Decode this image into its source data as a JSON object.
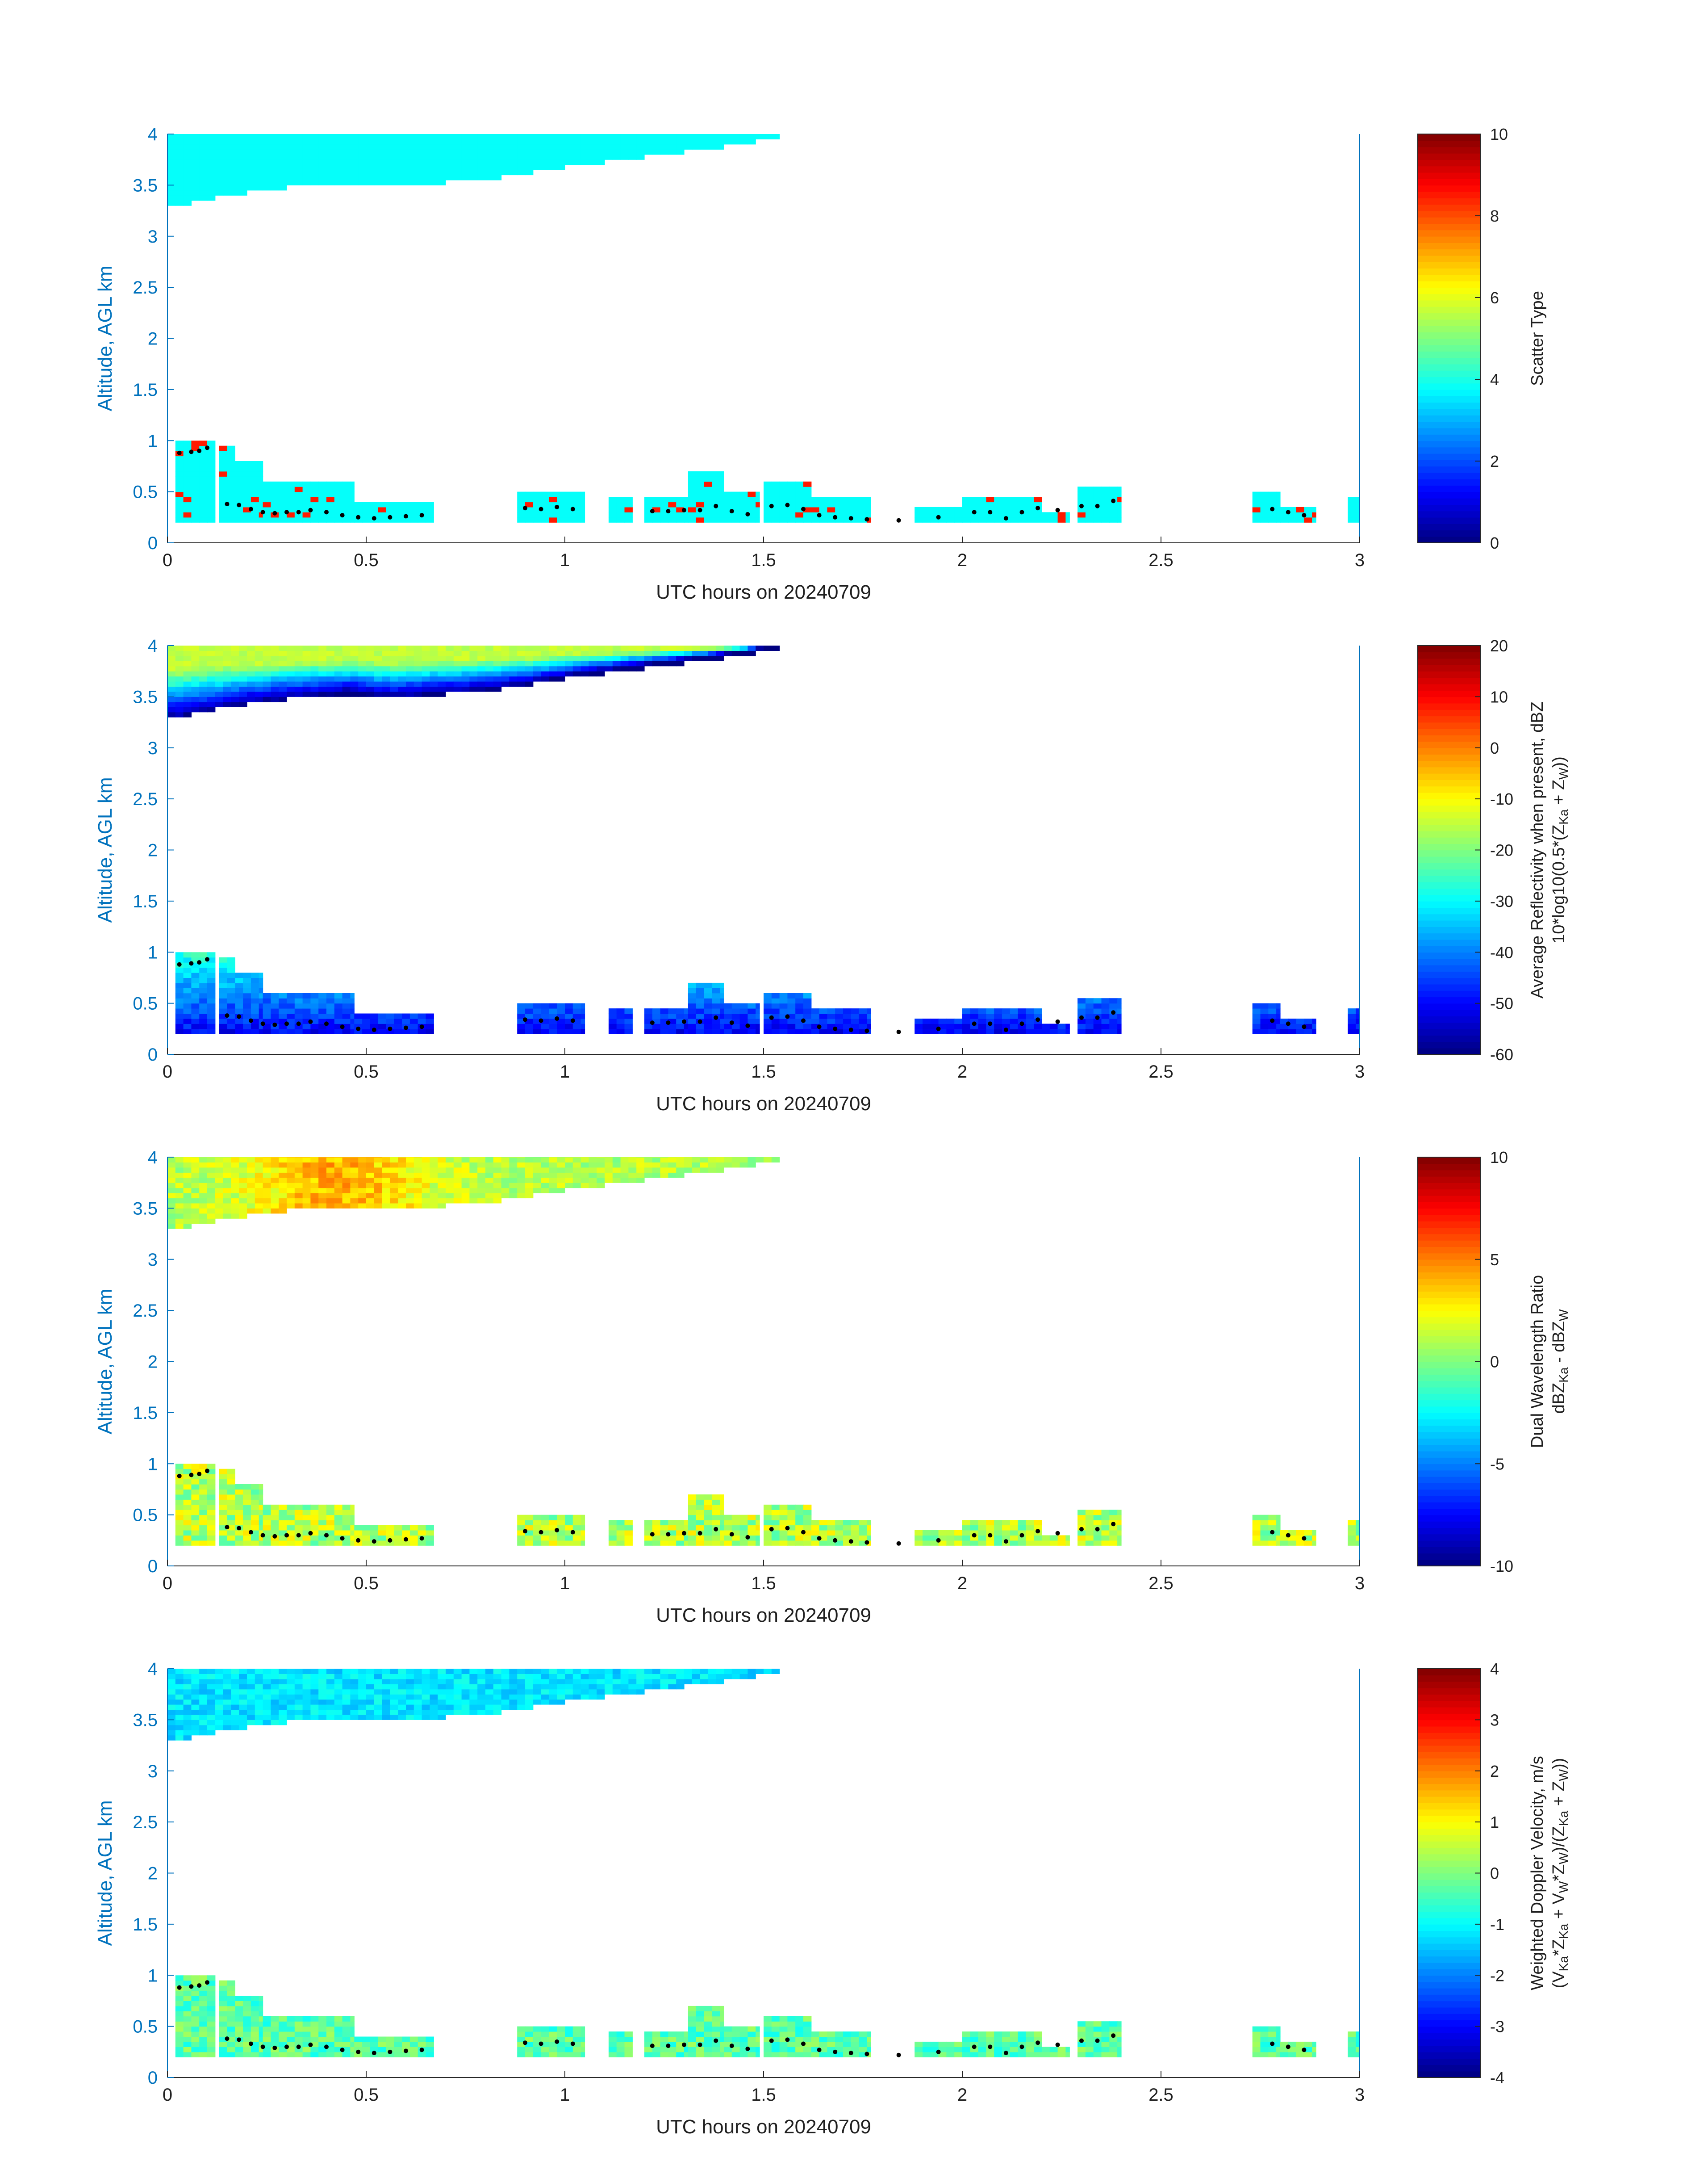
{
  "chart_data": [
    {
      "type": "heatmap",
      "panel": "scatter-type",
      "xlabel": "UTC hours on 20240709",
      "ylabel": "Altitude, AGL km",
      "xlim": [
        0,
        3
      ],
      "ylim": [
        0,
        4
      ],
      "xticks": [
        "0",
        "0.5",
        "1",
        "1.5",
        "2",
        "2.5",
        "3"
      ],
      "yticks": [
        "0",
        "0.5",
        "1",
        "1.5",
        "2",
        "2.5",
        "3",
        "3.5",
        "4"
      ],
      "colorbar": {
        "label_lines": [
          "Scatter Type"
        ],
        "range": [
          0,
          10
        ],
        "ticks": [
          "0",
          "2",
          "4",
          "6",
          "8",
          "10"
        ]
      },
      "dominant_value": 3.8,
      "secondary_value": 8.5
    },
    {
      "type": "heatmap",
      "panel": "reflectivity",
      "xlabel": "UTC hours on 20240709",
      "ylabel": "Altitude, AGL km",
      "xlim": [
        0,
        3
      ],
      "ylim": [
        0,
        4
      ],
      "xticks": [
        "0",
        "0.5",
        "1",
        "1.5",
        "2",
        "2.5",
        "3"
      ],
      "yticks": [
        "0",
        "0.5",
        "1",
        "1.5",
        "2",
        "2.5",
        "3",
        "3.5",
        "4"
      ],
      "colorbar": {
        "label_lines": [
          "Average Reflectivity when present, dBZ",
          "10*log10(0.5*(Z",
          "Ka",
          " + Z",
          "W",
          "))"
        ],
        "range": [
          -60,
          20
        ],
        "ticks": [
          "-60",
          "-50",
          "-40",
          "-30",
          "-20",
          "-10",
          "0",
          "10",
          "20"
        ]
      },
      "upper_layer_top_value": -15,
      "upper_layer_base_value": -55,
      "lower_layer_value": -50
    },
    {
      "type": "heatmap",
      "panel": "dual-wavelength-ratio",
      "xlabel": "UTC hours on 20240709",
      "ylabel": "Altitude, AGL km",
      "xlim": [
        0,
        3
      ],
      "ylim": [
        0,
        4
      ],
      "xticks": [
        "0",
        "0.5",
        "1",
        "1.5",
        "2",
        "2.5",
        "3"
      ],
      "yticks": [
        "0",
        "0.5",
        "1",
        "1.5",
        "2",
        "2.5",
        "3",
        "3.5",
        "4"
      ],
      "colorbar": {
        "label_lines": [
          "Dual Wavelength Ratio",
          "dBZ",
          "Ka",
          " - dBZ",
          "W"
        ],
        "range": [
          -10,
          10
        ],
        "ticks": [
          "-10",
          "-5",
          "0",
          "5",
          "10"
        ]
      },
      "upper_layer_value": 1,
      "upper_layer_peak_value": 4,
      "lower_layer_value": 1
    },
    {
      "type": "heatmap",
      "panel": "doppler-velocity",
      "xlabel": "UTC hours on 20240709",
      "ylabel": "Altitude, AGL km",
      "xlim": [
        0,
        3
      ],
      "ylim": [
        0,
        4
      ],
      "xticks": [
        "0",
        "0.5",
        "1",
        "1.5",
        "2",
        "2.5",
        "3"
      ],
      "yticks": [
        "0",
        "0.5",
        "1",
        "1.5",
        "2",
        "2.5",
        "3",
        "3.5",
        "4"
      ],
      "colorbar": {
        "label_lines": [
          "Weighted Doppler Velocity, m/s",
          "(V",
          "Ka",
          "*Z",
          "Ka",
          " + V",
          "W",
          "*Z",
          "W",
          ")/(Z",
          "Ka",
          " + Z",
          "W",
          "))"
        ],
        "range": [
          -4,
          4
        ],
        "ticks": [
          "-4",
          "-3",
          "-2",
          "-1",
          "0",
          "1",
          "2",
          "3",
          "4"
        ]
      },
      "upper_layer_value": -1.2,
      "lower_layer_value": -0.3
    }
  ],
  "clouds": {
    "upper_layer": {
      "x_range": [
        0,
        1.55
      ],
      "top_km": 4,
      "base_profile": [
        [
          0,
          3.3
        ],
        [
          0.1,
          3.38
        ],
        [
          0.2,
          3.45
        ],
        [
          0.3,
          3.5
        ],
        [
          0.45,
          3.55
        ],
        [
          0.55,
          3.5
        ],
        [
          0.7,
          3.55
        ],
        [
          0.85,
          3.6
        ],
        [
          1.0,
          3.7
        ],
        [
          1.15,
          3.78
        ],
        [
          1.3,
          3.85
        ],
        [
          1.45,
          3.93
        ],
        [
          1.55,
          4.0
        ]
      ]
    },
    "low_layer": {
      "bottom_km": 0.2,
      "segments": [
        [
          0.02,
          0.12,
          1.0
        ],
        [
          0.13,
          0.17,
          0.95
        ],
        [
          0.17,
          0.24,
          0.8
        ],
        [
          0.24,
          0.3,
          0.6
        ],
        [
          0.3,
          0.47,
          0.6
        ],
        [
          0.47,
          0.67,
          0.4
        ],
        [
          0.88,
          1.05,
          0.5
        ],
        [
          1.11,
          1.17,
          0.45
        ],
        [
          1.2,
          1.31,
          0.45
        ],
        [
          1.31,
          1.4,
          0.7
        ],
        [
          1.4,
          1.49,
          0.5
        ],
        [
          1.5,
          1.62,
          0.6
        ],
        [
          1.62,
          1.77,
          0.45
        ],
        [
          1.88,
          2.0,
          0.35
        ],
        [
          2.0,
          2.2,
          0.45
        ],
        [
          2.2,
          2.27,
          0.3
        ],
        [
          2.29,
          2.4,
          0.55
        ],
        [
          2.73,
          2.8,
          0.48
        ],
        [
          2.8,
          2.89,
          0.35
        ],
        [
          2.97,
          3.0,
          0.45
        ]
      ]
    },
    "cloud_base_dots": [
      [
        0.03,
        0.88
      ],
      [
        0.06,
        0.89
      ],
      [
        0.08,
        0.9
      ],
      [
        0.1,
        0.93
      ],
      [
        0.15,
        0.38
      ],
      [
        0.18,
        0.37
      ],
      [
        0.21,
        0.33
      ],
      [
        0.24,
        0.3
      ],
      [
        0.27,
        0.29
      ],
      [
        0.3,
        0.3
      ],
      [
        0.33,
        0.3
      ],
      [
        0.36,
        0.32
      ],
      [
        0.4,
        0.3
      ],
      [
        0.44,
        0.27
      ],
      [
        0.48,
        0.25
      ],
      [
        0.52,
        0.24
      ],
      [
        0.56,
        0.25
      ],
      [
        0.6,
        0.26
      ],
      [
        0.64,
        0.27
      ],
      [
        0.9,
        0.34
      ],
      [
        0.94,
        0.33
      ],
      [
        0.98,
        0.35
      ],
      [
        1.02,
        0.33
      ],
      [
        1.22,
        0.31
      ],
      [
        1.26,
        0.31
      ],
      [
        1.3,
        0.32
      ],
      [
        1.34,
        0.32
      ],
      [
        1.38,
        0.36
      ],
      [
        1.42,
        0.31
      ],
      [
        1.46,
        0.28
      ],
      [
        1.52,
        0.36
      ],
      [
        1.56,
        0.37
      ],
      [
        1.6,
        0.33
      ],
      [
        1.64,
        0.27
      ],
      [
        1.68,
        0.25
      ],
      [
        1.72,
        0.24
      ],
      [
        1.76,
        0.23
      ],
      [
        1.84,
        0.22
      ],
      [
        1.94,
        0.25
      ],
      [
        2.03,
        0.3
      ],
      [
        2.07,
        0.3
      ],
      [
        2.11,
        0.24
      ],
      [
        2.15,
        0.3
      ],
      [
        2.19,
        0.34
      ],
      [
        2.24,
        0.32
      ],
      [
        2.3,
        0.36
      ],
      [
        2.34,
        0.36
      ],
      [
        2.38,
        0.41
      ],
      [
        2.78,
        0.33
      ],
      [
        2.82,
        0.3
      ],
      [
        2.86,
        0.27
      ]
    ]
  }
}
